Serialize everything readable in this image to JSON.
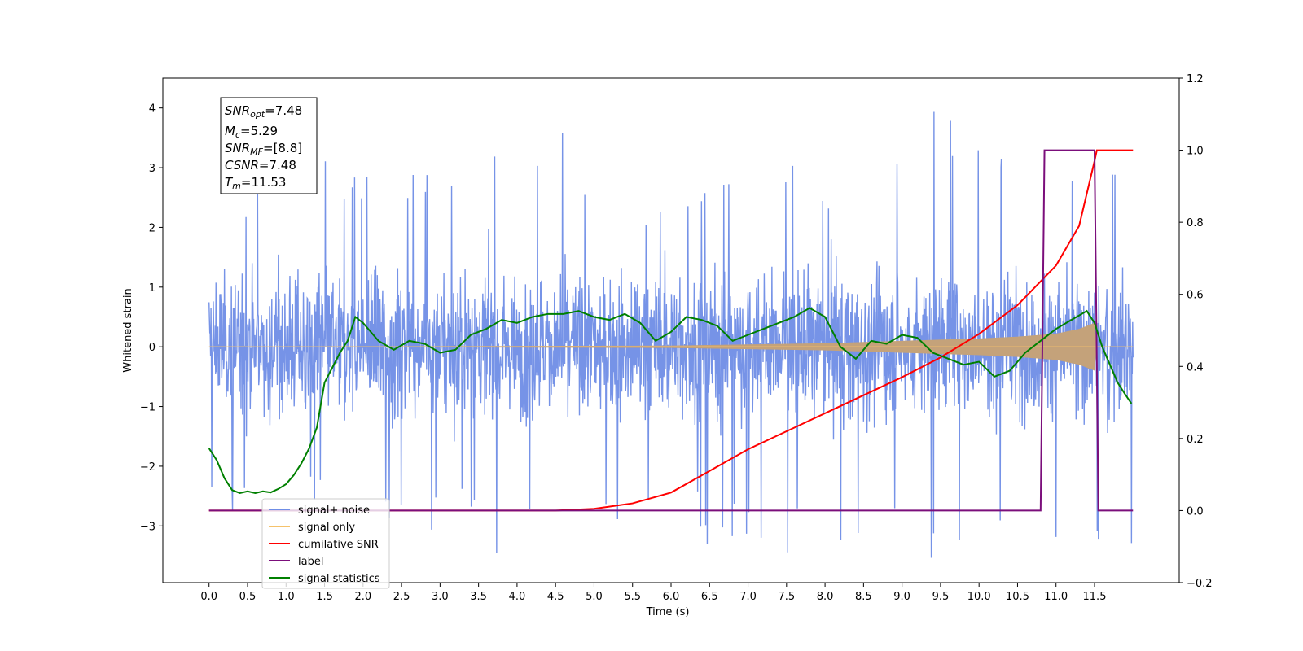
{
  "chart_data": {
    "type": "line",
    "title": "",
    "xlabel": "Time (s)",
    "ylabel": "Whitened strain",
    "y2label": "",
    "xlim": [
      -0.6,
      12.6
    ],
    "ylim": [
      -3.95,
      4.5
    ],
    "y2lim": [
      -0.2,
      1.2
    ],
    "grid": false,
    "legend_position": "lower-left",
    "x_ticks": [
      "0.0",
      "0.5",
      "1.0",
      "1.5",
      "2.0",
      "2.5",
      "3.0",
      "3.5",
      "4.0",
      "4.5",
      "5.0",
      "5.5",
      "6.0",
      "6.5",
      "7.0",
      "7.5",
      "8.0",
      "8.5",
      "9.0",
      "9.5",
      "10.0",
      "10.5",
      "11.0",
      "11.5"
    ],
    "y_ticks": [
      "4",
      "3",
      "2",
      "1",
      "0",
      "−1",
      "−2",
      "−3"
    ],
    "y2_ticks": [
      "1.2",
      "1.0",
      "0.8",
      "0.6",
      "0.4",
      "0.2",
      "0.0",
      "−0.2"
    ],
    "annotation": {
      "snr_opt": "7.48",
      "mc": "5.29",
      "snr_mf": "[8.8]",
      "csnr": "7.48",
      "tm": "11.53"
    },
    "series": [
      {
        "name": "signal+ noise",
        "axis": "left",
        "color": "#6f8de6",
        "kind": "noise",
        "envelope_x": [
          0,
          12
        ],
        "peaks_max": [
          2.8,
          3.2,
          3.1,
          3.0,
          3.95,
          3.1,
          2.7,
          3.25,
          3.05,
          3.3,
          4.1,
          3.2,
          2.9
        ],
        "peaks_min": [
          -2.85,
          -2.7,
          -2.9,
          -3.1,
          -3.5,
          -3.5,
          -3.2,
          -3.45,
          -3.45,
          -3.45,
          -3.7,
          -3.3,
          -3.3
        ]
      },
      {
        "name": "signal only",
        "axis": "left",
        "color": "#f5c26b",
        "kind": "chirp",
        "x": [
          0,
          6.0,
          8.0,
          9.0,
          10.0,
          10.5,
          11.0,
          11.3,
          11.5,
          11.53,
          12.0
        ],
        "amplitude": [
          0.0,
          0.02,
          0.06,
          0.1,
          0.14,
          0.17,
          0.22,
          0.3,
          0.4,
          0.0,
          0.0
        ]
      },
      {
        "name": "cumilative SNR",
        "axis": "right",
        "color": "#ff0000",
        "x": [
          0.0,
          4.5,
          5.0,
          5.5,
          6.0,
          6.5,
          7.0,
          7.5,
          8.0,
          8.5,
          9.0,
          9.5,
          10.0,
          10.5,
          11.0,
          11.3,
          11.5,
          11.53,
          12.0
        ],
        "y": [
          0.0,
          0.0,
          0.005,
          0.02,
          0.05,
          0.11,
          0.17,
          0.22,
          0.27,
          0.32,
          0.37,
          0.425,
          0.49,
          0.57,
          0.68,
          0.79,
          0.97,
          1.0,
          1.0
        ]
      },
      {
        "name": "label",
        "axis": "right",
        "color": "#7b0e7b",
        "x": [
          0.0,
          10.8,
          10.85,
          11.5,
          11.55,
          12.0
        ],
        "y": [
          0.0,
          0.0,
          1.0,
          1.0,
          0.0,
          0.0
        ]
      },
      {
        "name": "signal statistics",
        "axis": "left",
        "color": "#008000",
        "x": [
          0.0,
          0.1,
          0.2,
          0.3,
          0.4,
          0.5,
          0.6,
          0.7,
          0.8,
          0.9,
          1.0,
          1.1,
          1.2,
          1.3,
          1.4,
          1.5,
          1.6,
          1.7,
          1.8,
          1.9,
          2.0,
          2.2,
          2.4,
          2.6,
          2.8,
          3.0,
          3.2,
          3.4,
          3.6,
          3.8,
          4.0,
          4.2,
          4.4,
          4.6,
          4.8,
          5.0,
          5.2,
          5.4,
          5.6,
          5.8,
          6.0,
          6.2,
          6.4,
          6.6,
          6.8,
          7.0,
          7.2,
          7.4,
          7.6,
          7.8,
          8.0,
          8.2,
          8.4,
          8.6,
          8.8,
          9.0,
          9.2,
          9.4,
          9.6,
          9.8,
          10.0,
          10.2,
          10.4,
          10.6,
          10.8,
          11.0,
          11.2,
          11.4,
          11.5,
          11.6,
          11.7,
          11.8,
          11.9,
          11.98
        ],
        "y": [
          -1.7,
          -1.9,
          -2.2,
          -2.4,
          -2.45,
          -2.42,
          -2.45,
          -2.42,
          -2.44,
          -2.38,
          -2.3,
          -2.15,
          -1.95,
          -1.7,
          -1.35,
          -0.6,
          -0.35,
          -0.1,
          0.1,
          0.5,
          0.4,
          0.1,
          -0.05,
          0.1,
          0.05,
          -0.1,
          -0.05,
          0.2,
          0.3,
          0.45,
          0.4,
          0.5,
          0.55,
          0.55,
          0.6,
          0.5,
          0.45,
          0.55,
          0.4,
          0.1,
          0.25,
          0.5,
          0.45,
          0.35,
          0.1,
          0.2,
          0.3,
          0.4,
          0.5,
          0.65,
          0.5,
          0.0,
          -0.2,
          0.1,
          0.05,
          0.2,
          0.15,
          -0.1,
          -0.2,
          -0.3,
          -0.25,
          -0.5,
          -0.4,
          -0.1,
          0.1,
          0.3,
          0.45,
          0.6,
          0.4,
          0.0,
          -0.3,
          -0.6,
          -0.8,
          -0.95
        ]
      }
    ],
    "legend_entries": [
      {
        "label": "signal+ noise",
        "color": "#6f8de6"
      },
      {
        "label": "signal only",
        "color": "#f5c26b"
      },
      {
        "label": "cumilative SNR",
        "color": "#ff0000"
      },
      {
        "label": "label",
        "color": "#7b0e7b"
      },
      {
        "label": "signal statistics",
        "color": "#008000"
      }
    ]
  }
}
